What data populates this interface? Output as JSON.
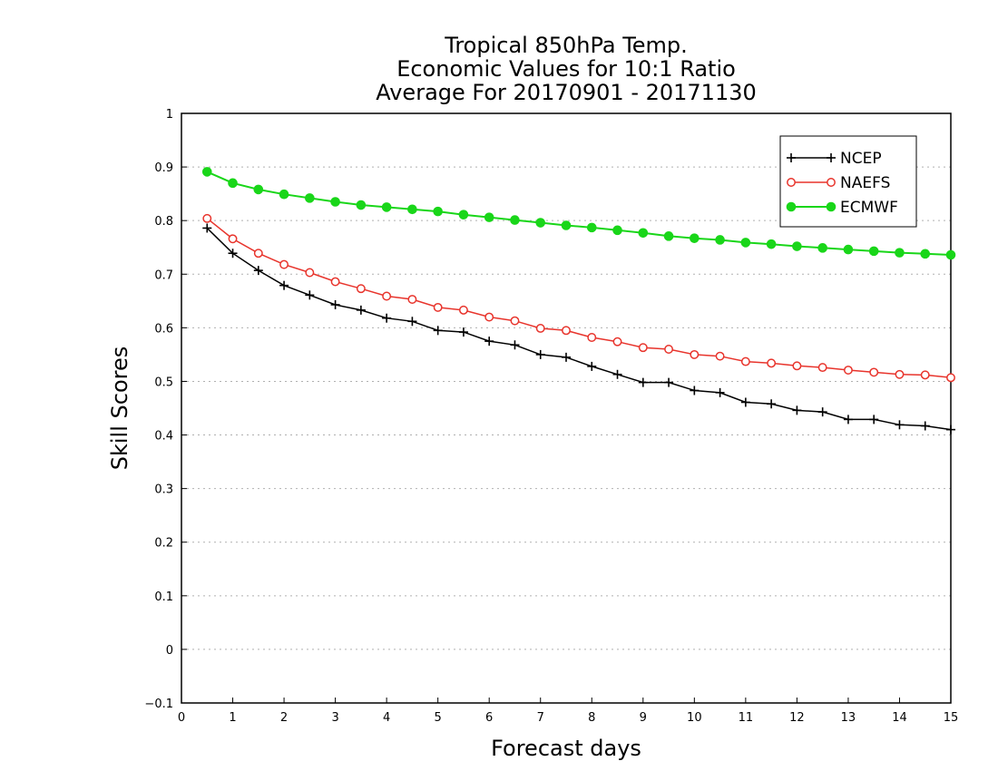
{
  "chart_data": {
    "type": "line",
    "title": [
      "Tropical 850hPa Temp.",
      "Economic Values for 10:1 Ratio",
      "Average For 20170901 - 20171130"
    ],
    "xlabel": "Forecast days",
    "ylabel": "Skill Scores",
    "xlim": [
      0,
      15
    ],
    "ylim": [
      -0.1,
      1
    ],
    "xticks": [
      "0",
      "1",
      "2",
      "3",
      "4",
      "5",
      "6",
      "7",
      "8",
      "9",
      "10",
      "11",
      "12",
      "13",
      "14",
      "15"
    ],
    "yticks": [
      "−0.1",
      "0",
      "0.1",
      "0.2",
      "0.3",
      "0.4",
      "0.5",
      "0.6",
      "0.7",
      "0.8",
      "0.9",
      "1"
    ],
    "grid": "horizontal dotted",
    "legend_position": "top-right",
    "x": [
      0.5,
      1,
      1.5,
      2,
      2.5,
      3,
      3.5,
      4,
      4.5,
      5,
      5.5,
      6,
      6.5,
      7,
      7.5,
      8,
      8.5,
      9,
      9.5,
      10,
      10.5,
      11,
      11.5,
      12,
      12.5,
      13,
      13.5,
      14,
      14.5,
      15
    ],
    "series": [
      {
        "name": "NCEP",
        "color": "#000000",
        "marker": "plus",
        "values": [
          0.786,
          0.739,
          0.707,
          0.679,
          0.661,
          0.643,
          0.633,
          0.618,
          0.612,
          0.595,
          0.592,
          0.575,
          0.568,
          0.55,
          0.545,
          0.528,
          0.513,
          0.498,
          0.498,
          0.483,
          0.479,
          0.461,
          0.458,
          0.446,
          0.443,
          0.429,
          0.429,
          0.419,
          0.417,
          0.41
        ]
      },
      {
        "name": "NAEFS",
        "color": "#e8342c",
        "marker": "open-circle",
        "values": [
          0.804,
          0.766,
          0.739,
          0.718,
          0.703,
          0.686,
          0.673,
          0.659,
          0.653,
          0.638,
          0.633,
          0.62,
          0.613,
          0.599,
          0.595,
          0.582,
          0.574,
          0.563,
          0.56,
          0.55,
          0.547,
          0.537,
          0.534,
          0.529,
          0.526,
          0.521,
          0.517,
          0.513,
          0.512,
          0.507
        ]
      },
      {
        "name": "ECMWF",
        "color": "#19d619",
        "marker": "filled-circle",
        "values": [
          0.891,
          0.87,
          0.858,
          0.849,
          0.842,
          0.835,
          0.829,
          0.825,
          0.821,
          0.817,
          0.811,
          0.806,
          0.801,
          0.796,
          0.791,
          0.787,
          0.782,
          0.777,
          0.771,
          0.767,
          0.764,
          0.759,
          0.756,
          0.752,
          0.749,
          0.746,
          0.743,
          0.74,
          0.738,
          0.736
        ]
      }
    ]
  }
}
